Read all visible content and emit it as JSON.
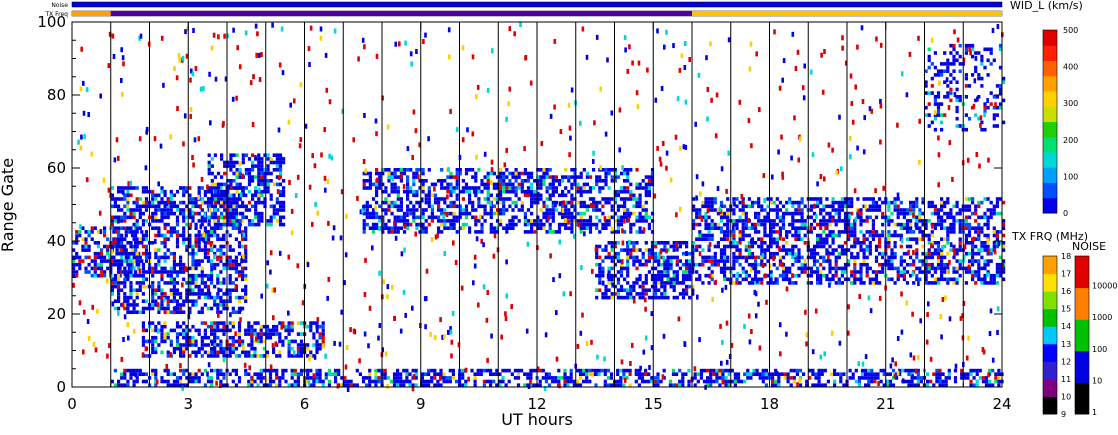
{
  "chart_data": [
    {
      "type": "heatmap",
      "title": "",
      "xlabel": "UT hours",
      "ylabel": "Range Gate",
      "xlim": [
        0,
        24
      ],
      "ylim": [
        0,
        100
      ],
      "x_ticks": [
        "0",
        "3",
        "6",
        "9",
        "12",
        "15",
        "18",
        "21",
        "24"
      ],
      "y_ticks": [
        "0",
        "20",
        "40",
        "60",
        "80",
        "100"
      ],
      "x_tick_values": [
        0,
        3,
        6,
        9,
        12,
        15,
        18,
        21,
        24
      ],
      "y_tick_values": [
        0,
        20,
        40,
        60,
        80,
        100
      ],
      "grid": "vertical lines every hour",
      "colorbar": {
        "label": "WID_L (km/s)",
        "range": [
          0,
          500
        ],
        "ticks": [
          "0",
          "100",
          "200",
          "300",
          "400",
          "500"
        ],
        "tick_values": [
          0,
          100,
          200,
          300,
          400,
          500
        ],
        "colors": [
          "#0000e6",
          "#0050ff",
          "#00a0ff",
          "#00d8d8",
          "#00e070",
          "#20d000",
          "#c8e000",
          "#ffd000",
          "#ffa000",
          "#ff6000",
          "#ff2000",
          "#e00000"
        ]
      },
      "scatter_regions": [
        {
          "name": "near-range band",
          "x": [
            1.0,
            24.0
          ],
          "y": [
            0,
            5
          ],
          "density": "high"
        },
        {
          "name": "main band morning",
          "x": [
            0.0,
            1.8
          ],
          "y": [
            30,
            44
          ],
          "density": "high"
        },
        {
          "name": "rising arc",
          "x": [
            1.0,
            4.5
          ],
          "y": [
            20,
            55
          ],
          "density": "high"
        },
        {
          "name": "low band",
          "x": [
            1.8,
            6.5
          ],
          "y": [
            8,
            18
          ],
          "density": "high"
        },
        {
          "name": "mid arc",
          "x": [
            3.5,
            5.5
          ],
          "y": [
            44,
            64
          ],
          "density": "high"
        },
        {
          "name": "afternoon band",
          "x": [
            7.5,
            15.0
          ],
          "y": [
            42,
            60
          ],
          "density": "high"
        },
        {
          "name": "drift down",
          "x": [
            13.5,
            16.0
          ],
          "y": [
            24,
            40
          ],
          "density": "high"
        },
        {
          "name": "evening band",
          "x": [
            16.0,
            24.0
          ],
          "y": [
            28,
            52
          ],
          "density": "high"
        },
        {
          "name": "late high patch",
          "x": [
            22.0,
            24.0
          ],
          "y": [
            70,
            94
          ],
          "density": "medium"
        }
      ]
    },
    {
      "type": "heatmap",
      "title": "",
      "xlabel": "",
      "ylabel": "",
      "xlim": [
        0,
        24
      ],
      "ylim": [
        9,
        18
      ],
      "colorbar": {
        "label": "TX FRQ (MHz)",
        "ticks": [
          "9",
          "10",
          "11",
          "12",
          "13",
          "14",
          "15",
          "16",
          "17",
          "18"
        ],
        "tick_values": [
          9,
          10,
          11,
          12,
          13,
          14,
          15,
          16,
          17,
          18
        ],
        "colors": [
          "#000000",
          "#800080",
          "#3020d0",
          "#0000ff",
          "#00c8ff",
          "#00c000",
          "#80e000",
          "#ffe000",
          "#ffa000",
          "#ff5000",
          "#e00000"
        ]
      },
      "strips": {
        "noise_label": "Noise",
        "freq_label": "TX Freq",
        "freq_segments": [
          {
            "x": [
              0.0,
              1.0
            ],
            "value": "orange"
          },
          {
            "x": [
              1.0,
              16.0
            ],
            "value": "purple"
          },
          {
            "x": [
              16.0,
              24.0
            ],
            "value": "yellow-orange"
          }
        ]
      }
    },
    {
      "type": "heatmap",
      "title": "",
      "xlabel": "",
      "ylabel": "",
      "colorbar": {
        "label": "NOISE",
        "scale": "log",
        "ticks": [
          "1",
          "10",
          "100",
          "1000",
          "10000"
        ],
        "tick_values": [
          1,
          10,
          100,
          1000,
          10000
        ],
        "colors": [
          "#000000",
          "#0000e0",
          "#00c000",
          "#ff8000",
          "#e00000"
        ]
      }
    }
  ]
}
